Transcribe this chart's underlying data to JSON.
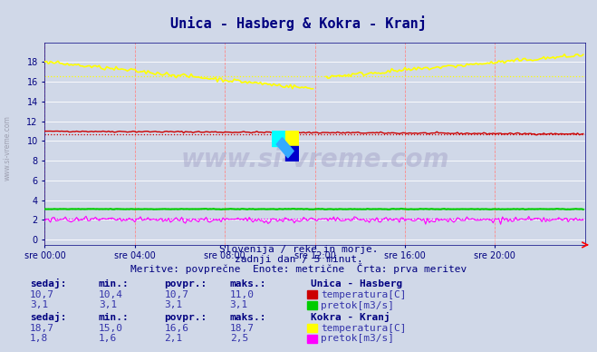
{
  "title": "Unica - Hasberg & Kokra - Kranj",
  "title_color": "#000080",
  "bg_color": "#d0d8e8",
  "plot_bg_color": "#d0d8e8",
  "grid_color_major": "#ffffff",
  "subtitle1": "Slovenija / reke in morje.",
  "subtitle2": "zadnji dan / 5 minut.",
  "subtitle3": "Meritve: povprečne  Enote: metrične  Črta: prva meritev",
  "xlabel_times": [
    "sre 00:00",
    "sre 04:00",
    "sre 08:00",
    "sre 12:00",
    "sre 16:00",
    "sre 20:00"
  ],
  "ylabel_vals": [
    0,
    2,
    4,
    6,
    8,
    10,
    12,
    14,
    16,
    18
  ],
  "ylim": [
    -0.5,
    20
  ],
  "xlim": [
    0,
    288
  ],
  "watermark": "www.si-vreme.com",
  "station1_name": "Unica - Hasberg",
  "station1_temp_color": "#cc0000",
  "station1_flow_color": "#00cc00",
  "station1_temp_sedaj": "10,7",
  "station1_temp_min": "10,4",
  "station1_temp_povpr": "10,7",
  "station1_temp_maks": "11,0",
  "station1_flow_sedaj": "3,1",
  "station1_flow_min": "3,1",
  "station1_flow_povpr": "3,1",
  "station1_flow_maks": "3,1",
  "station2_name": "Kokra - Kranj",
  "station2_temp_color": "#ffff00",
  "station2_flow_color": "#ff00ff",
  "station2_temp_sedaj": "18,7",
  "station2_temp_min": "15,0",
  "station2_temp_povpr": "16,6",
  "station2_temp_maks": "18,7",
  "station2_flow_sedaj": "1,8",
  "station2_flow_min": "1,6",
  "station2_flow_povpr": "2,1",
  "station2_flow_maks": "2,5",
  "text_color": "#000080",
  "label_color": "#3333aa",
  "vline_color": "#ff8888",
  "n_points": 288,
  "avg_t1": 10.7,
  "avg_f1": 3.1,
  "avg_t2": 16.6,
  "avg_f2": 2.1
}
